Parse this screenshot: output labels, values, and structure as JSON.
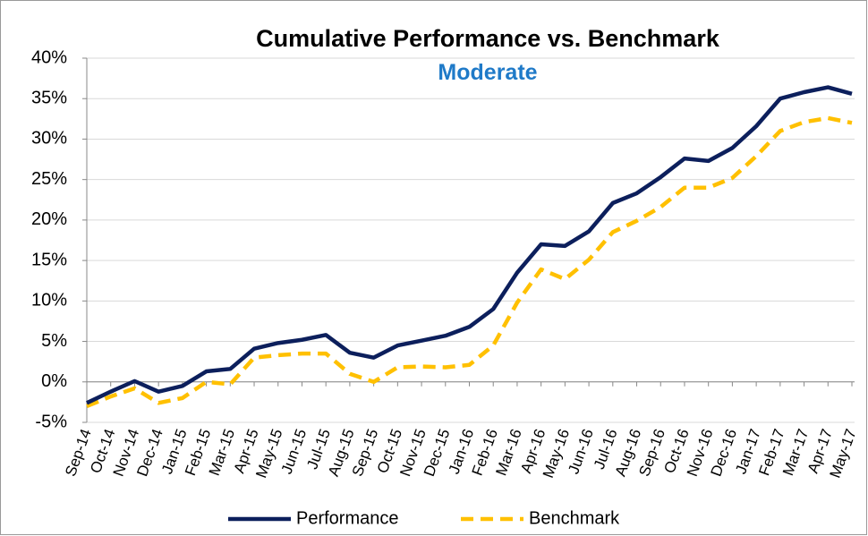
{
  "chart_data": {
    "type": "line",
    "title": "Cumulative Performance vs. Benchmark",
    "subtitle": "Moderate",
    "categories": [
      "Sep-14",
      "Oct-14",
      "Nov-14",
      "Dec-14",
      "Jan-15",
      "Feb-15",
      "Mar-15",
      "Apr-15",
      "May-15",
      "Jun-15",
      "Jul-15",
      "Aug-15",
      "Sep-15",
      "Oct-15",
      "Nov-15",
      "Dec-15",
      "Jan-16",
      "Feb-16",
      "Mar-16",
      "Apr-16",
      "May-16",
      "Jun-16",
      "Jul-16",
      "Aug-16",
      "Sep-16",
      "Oct-16",
      "Nov-16",
      "Dec-16",
      "Jan-17",
      "Feb-17",
      "Mar-17",
      "Apr-17",
      "May-17"
    ],
    "series": [
      {
        "name": "Performance",
        "color": "#0c1f5c",
        "dash": "solid",
        "values": [
          -2.6,
          -1.2,
          0.1,
          -1.2,
          -0.5,
          1.3,
          1.6,
          4.1,
          4.8,
          5.2,
          5.8,
          3.6,
          3.0,
          4.5,
          5.1,
          5.7,
          6.8,
          9.0,
          13.5,
          17.0,
          16.8,
          18.6,
          22.1,
          23.3,
          25.3,
          27.6,
          27.3,
          28.9,
          31.6,
          35.0,
          35.8,
          36.4,
          35.6
        ]
      },
      {
        "name": "Benchmark",
        "color": "#ffc000",
        "dash": "dashed",
        "values": [
          -3.0,
          -1.8,
          -0.8,
          -2.6,
          -2.0,
          0.0,
          -0.3,
          3.0,
          3.3,
          3.5,
          3.5,
          1.0,
          0.0,
          1.8,
          1.9,
          1.8,
          2.1,
          4.5,
          9.8,
          13.9,
          12.7,
          15.1,
          18.5,
          19.9,
          21.6,
          24.0,
          24.0,
          25.2,
          27.9,
          31.0,
          32.1,
          32.6,
          32.0
        ]
      }
    ],
    "ylim": [
      -5,
      40
    ],
    "yticks": [
      {
        "value": -5,
        "label": "-5%"
      },
      {
        "value": 0,
        "label": "0%"
      },
      {
        "value": 5,
        "label": "5%"
      },
      {
        "value": 10,
        "label": "10%"
      },
      {
        "value": 15,
        "label": "15%"
      },
      {
        "value": 20,
        "label": "20%"
      },
      {
        "value": 25,
        "label": "25%"
      },
      {
        "value": 30,
        "label": "30%"
      },
      {
        "value": 35,
        "label": "35%"
      },
      {
        "value": 40,
        "label": "40%"
      }
    ],
    "grid": true,
    "legend": "bottom"
  }
}
